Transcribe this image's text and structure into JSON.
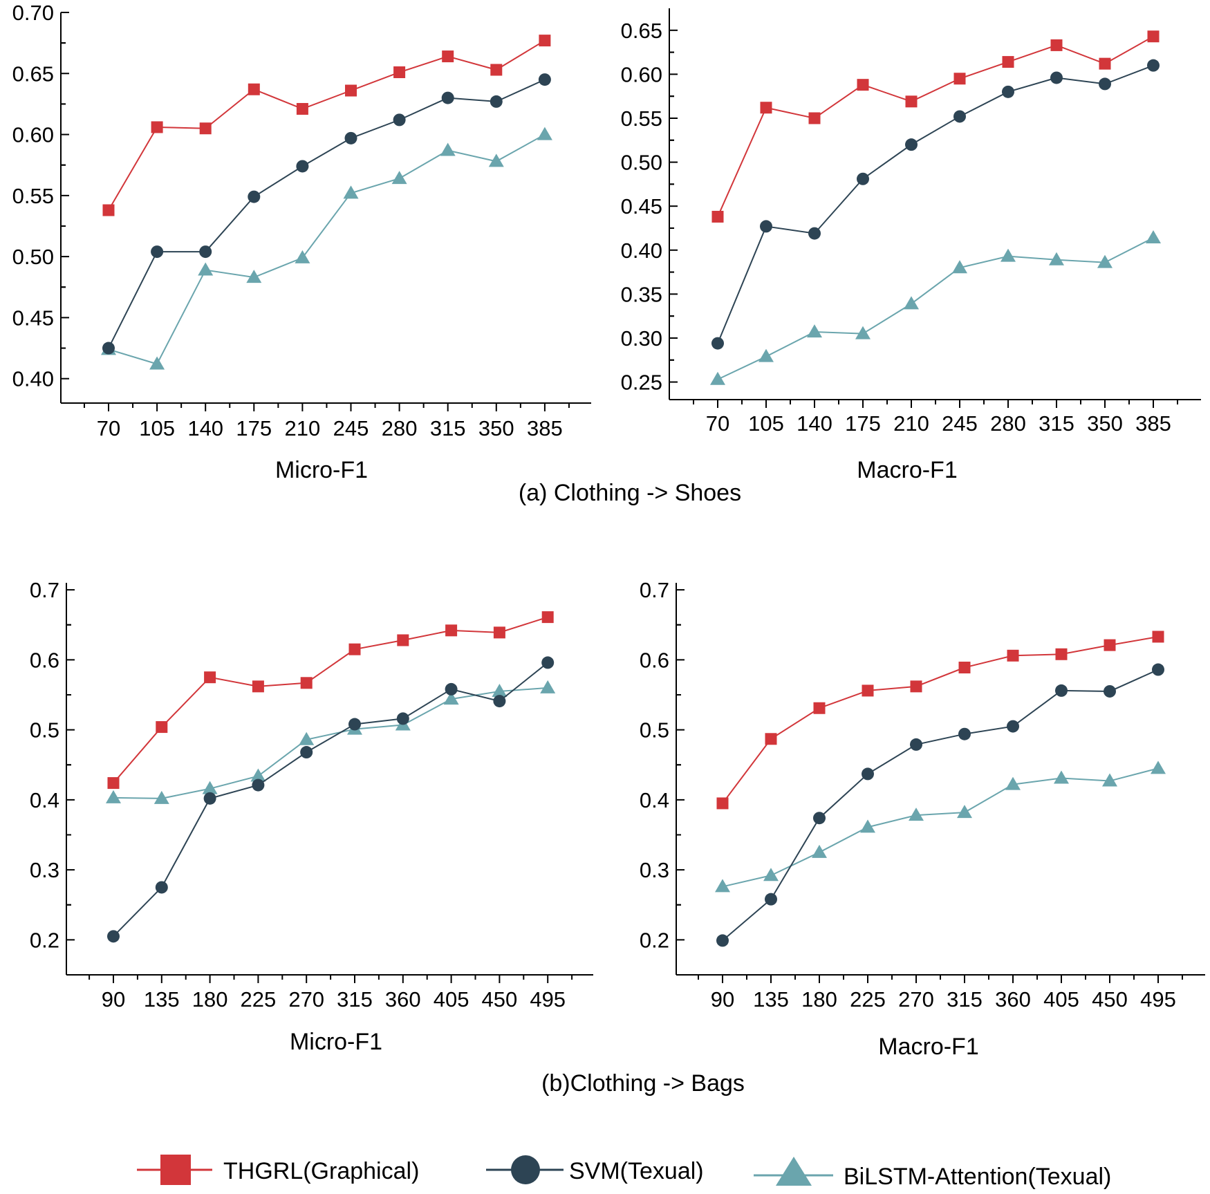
{
  "colors": {
    "thgrl": "#d2363a",
    "svm": "#2d4454",
    "bilstm": "#6aa5ad",
    "axis": "#000000"
  },
  "captions": {
    "a": "(a) Clothing -> Shoes",
    "b": "(b)Clothing -> Bags"
  },
  "legend": [
    {
      "label": "THGRL(Graphical)",
      "marker": "square",
      "color": "#d2363a"
    },
    {
      "label": "SVM(Texual)",
      "marker": "circle",
      "color": "#2d4454"
    },
    {
      "label": "BiLSTM-Attention(Texual)",
      "marker": "triangle",
      "color": "#6aa5ad"
    }
  ],
  "chart_data": [
    {
      "id": "a-micro",
      "type": "line",
      "title": "",
      "xlabel": "Micro-F1",
      "ylabel": "",
      "categories": [
        "70",
        "105",
        "140",
        "175",
        "210",
        "245",
        "280",
        "315",
        "350",
        "385"
      ],
      "ylim": [
        0.38,
        0.7
      ],
      "yticks": [
        "0.40",
        "0.45",
        "0.50",
        "0.55",
        "0.60",
        "0.65",
        "0.70"
      ],
      "series": [
        {
          "name": "THGRL(Graphical)",
          "marker": "square",
          "color": "#d2363a",
          "values": [
            0.538,
            0.606,
            0.605,
            0.637,
            0.621,
            0.636,
            0.651,
            0.664,
            0.653,
            0.677
          ]
        },
        {
          "name": "SVM(Texual)",
          "marker": "circle",
          "color": "#2d4454",
          "values": [
            0.425,
            0.504,
            0.504,
            0.549,
            0.574,
            0.597,
            0.612,
            0.63,
            0.627,
            0.645
          ]
        },
        {
          "name": "BiLSTM-Attention(Texual)",
          "marker": "triangle",
          "color": "#6aa5ad",
          "values": [
            0.424,
            0.412,
            0.489,
            0.483,
            0.499,
            0.552,
            0.564,
            0.587,
            0.578,
            0.6
          ]
        }
      ]
    },
    {
      "id": "a-macro",
      "type": "line",
      "title": "",
      "xlabel": "Macro-F1",
      "ylabel": "",
      "categories": [
        "70",
        "105",
        "140",
        "175",
        "210",
        "245",
        "280",
        "315",
        "350",
        "385"
      ],
      "ylim": [
        0.23,
        0.675
      ],
      "yticks": [
        "0.25",
        "0.30",
        "0.35",
        "0.40",
        "0.45",
        "0.50",
        "0.55",
        "0.60",
        "0.65"
      ],
      "series": [
        {
          "name": "THGRL(Graphical)",
          "marker": "square",
          "color": "#d2363a",
          "values": [
            0.438,
            0.562,
            0.55,
            0.588,
            0.569,
            0.595,
            0.614,
            0.633,
            0.612,
            0.643
          ]
        },
        {
          "name": "SVM(Texual)",
          "marker": "circle",
          "color": "#2d4454",
          "values": [
            0.294,
            0.427,
            0.419,
            0.481,
            0.52,
            0.552,
            0.58,
            0.596,
            0.589,
            0.61
          ]
        },
        {
          "name": "BiLSTM-Attention(Texual)",
          "marker": "triangle",
          "color": "#6aa5ad",
          "values": [
            0.253,
            0.279,
            0.307,
            0.305,
            0.339,
            0.38,
            0.393,
            0.389,
            0.386,
            0.414
          ]
        }
      ]
    },
    {
      "id": "b-micro",
      "type": "line",
      "title": "",
      "xlabel": "Micro-F1",
      "ylabel": "",
      "categories": [
        "90",
        "135",
        "180",
        "225",
        "270",
        "315",
        "360",
        "405",
        "450",
        "495"
      ],
      "ylim": [
        0.15,
        0.71
      ],
      "yticks": [
        "0.2",
        "0.3",
        "0.4",
        "0.5",
        "0.6",
        "0.7"
      ],
      "series": [
        {
          "name": "THGRL(Graphical)",
          "marker": "square",
          "color": "#d2363a",
          "values": [
            0.424,
            0.504,
            0.575,
            0.562,
            0.567,
            0.615,
            0.628,
            0.642,
            0.639,
            0.661
          ]
        },
        {
          "name": "SVM(Texual)",
          "marker": "circle",
          "color": "#2d4454",
          "values": [
            0.205,
            0.275,
            0.402,
            0.421,
            0.468,
            0.508,
            0.516,
            0.558,
            0.541,
            0.596
          ]
        },
        {
          "name": "BiLSTM-Attention(Texual)",
          "marker": "triangle",
          "color": "#6aa5ad",
          "values": [
            0.403,
            0.402,
            0.416,
            0.434,
            0.486,
            0.501,
            0.507,
            0.544,
            0.555,
            0.56
          ]
        }
      ]
    },
    {
      "id": "b-macro",
      "type": "line",
      "title": "",
      "xlabel": "Macro-F1",
      "ylabel": "",
      "categories": [
        "90",
        "135",
        "180",
        "225",
        "270",
        "315",
        "360",
        "405",
        "450",
        "495"
      ],
      "ylim": [
        0.15,
        0.71
      ],
      "yticks": [
        "0.2",
        "0.3",
        "0.4",
        "0.5",
        "0.6",
        "0.7"
      ],
      "series": [
        {
          "name": "THGRL(Graphical)",
          "marker": "square",
          "color": "#d2363a",
          "values": [
            0.395,
            0.487,
            0.531,
            0.556,
            0.562,
            0.589,
            0.606,
            0.608,
            0.621,
            0.633
          ]
        },
        {
          "name": "SVM(Texual)",
          "marker": "circle",
          "color": "#2d4454",
          "values": [
            0.199,
            0.258,
            0.374,
            0.437,
            0.479,
            0.494,
            0.505,
            0.556,
            0.555,
            0.586
          ]
        },
        {
          "name": "BiLSTM-Attention(Texual)",
          "marker": "triangle",
          "color": "#6aa5ad",
          "values": [
            0.276,
            0.292,
            0.325,
            0.361,
            0.378,
            0.382,
            0.422,
            0.431,
            0.427,
            0.445
          ]
        }
      ]
    }
  ]
}
